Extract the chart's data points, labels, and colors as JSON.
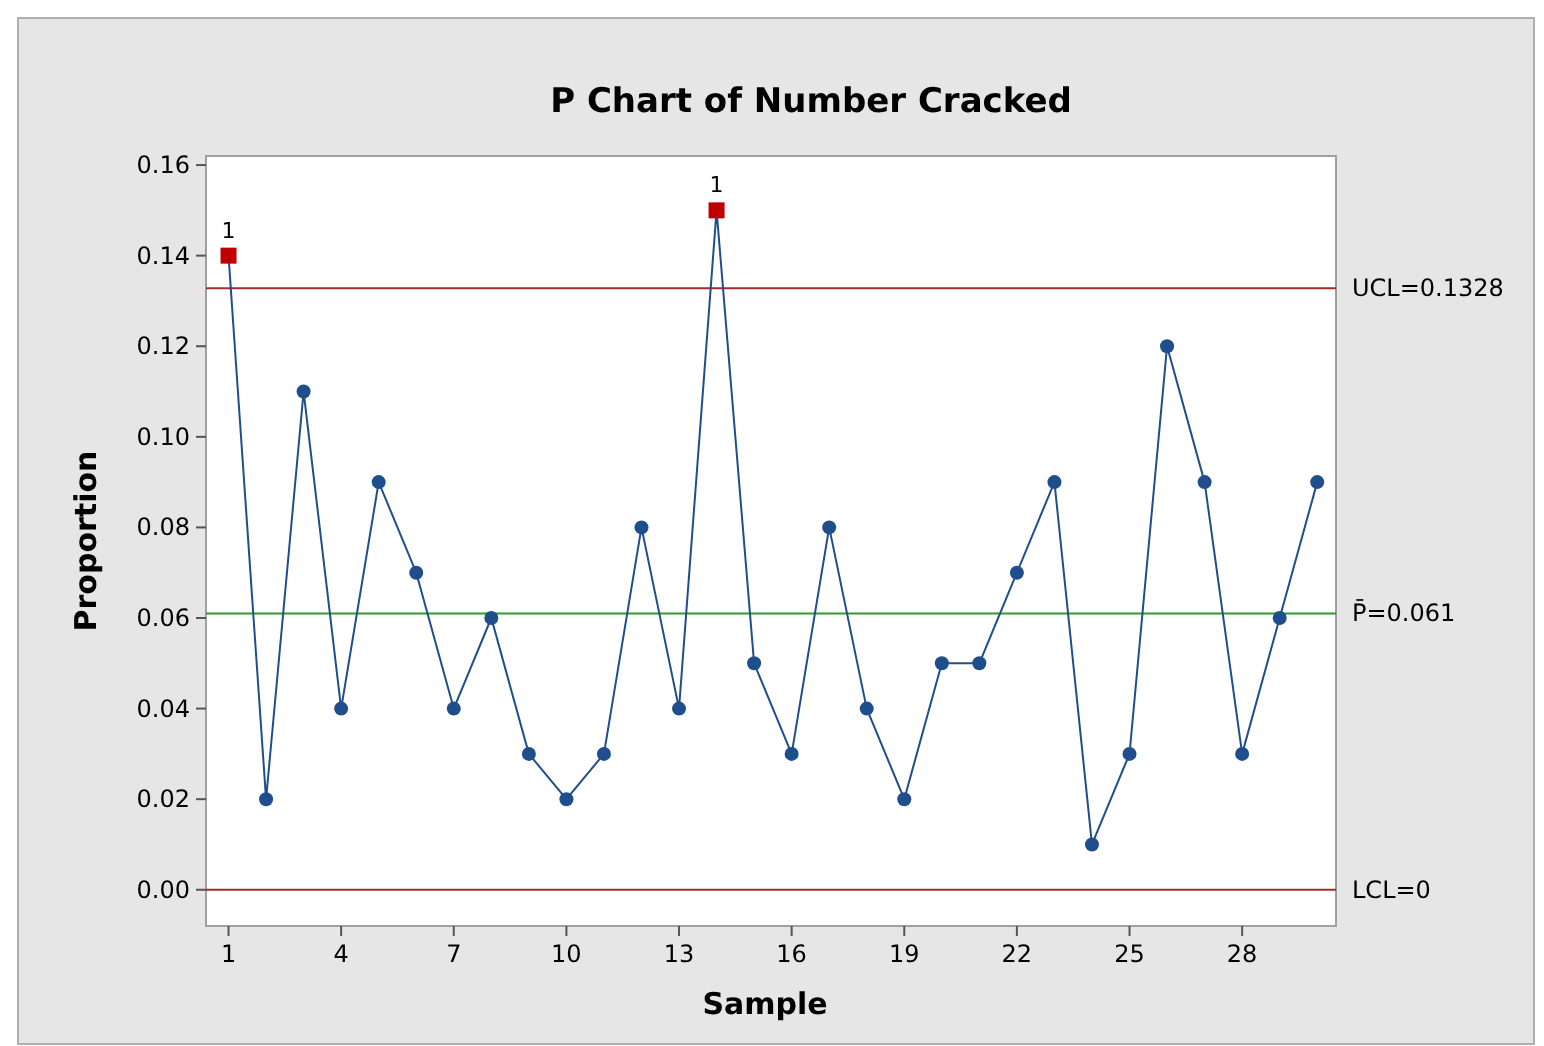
{
  "chart_data": {
    "type": "line",
    "title": "P Chart of Number Cracked",
    "xlabel": "Sample",
    "ylabel": "Proportion",
    "x": [
      1,
      2,
      3,
      4,
      5,
      6,
      7,
      8,
      9,
      10,
      11,
      12,
      13,
      14,
      15,
      16,
      17,
      18,
      19,
      20,
      21,
      22,
      23,
      24,
      25,
      26,
      27,
      28,
      29,
      30
    ],
    "series": [
      {
        "color": "#1f4e8c",
        "marker": "none",
        "values": [
          0.14,
          0.02,
          0.11,
          0.04,
          0.09,
          0.07,
          0.04,
          0.06,
          0.03,
          0.02,
          0.03,
          0.08,
          0.04,
          0.15,
          0.05,
          0.03,
          0.08,
          0.04,
          0.02,
          0.05,
          0.05,
          0.07,
          0.09,
          0.01,
          0.03,
          0.12,
          0.09,
          0.03,
          0.06,
          0.09
        ]
      },
      {
        "type": "scatter",
        "color": "#1f4e8c",
        "marker": "circle",
        "x": [
          2,
          3,
          4,
          5,
          6,
          7,
          8,
          9,
          10,
          11,
          12,
          13,
          15,
          16,
          17,
          18,
          19,
          20,
          21,
          22,
          23,
          24,
          25,
          26,
          27,
          28,
          29,
          30
        ],
        "values": [
          0.02,
          0.11,
          0.04,
          0.09,
          0.07,
          0.04,
          0.06,
          0.03,
          0.02,
          0.03,
          0.08,
          0.04,
          0.05,
          0.03,
          0.08,
          0.04,
          0.02,
          0.05,
          0.05,
          0.07,
          0.09,
          0.01,
          0.03,
          0.12,
          0.09,
          0.03,
          0.06,
          0.09
        ]
      },
      {
        "type": "scatter",
        "color": "#c00000",
        "marker": "square",
        "x": [
          1,
          14
        ],
        "values": [
          0.14,
          0.15
        ]
      }
    ],
    "xlim": [
      0.4,
      30.5
    ],
    "xticks": [
      1,
      4,
      7,
      10,
      13,
      16,
      19,
      22,
      25,
      28
    ],
    "ylim": [
      -0.008,
      0.162
    ],
    "yticks": [
      {
        "value": 0,
        "label": "0.00"
      },
      {
        "value": 0.02,
        "label": "0.02"
      },
      {
        "value": 0.04,
        "label": "0.04"
      },
      {
        "value": 0.06,
        "label": "0.06"
      },
      {
        "value": 0.08,
        "label": "0.08"
      },
      {
        "value": 0.1,
        "label": "0.10"
      },
      {
        "value": 0.12,
        "label": "0.12"
      },
      {
        "value": 0.14,
        "label": "0.14"
      },
      {
        "value": 0.16,
        "label": "0.16"
      }
    ],
    "ref_lines": [
      {
        "axis": "y",
        "value": 0.1328,
        "label": "UCL=0.1328",
        "color": "#a52a2a"
      },
      {
        "axis": "y",
        "value": 0.061,
        "label": "P̄=0.061",
        "color": "#2e9a2e"
      },
      {
        "axis": "y",
        "value": 0,
        "label": "LCL=0",
        "color": "#a52a2a"
      }
    ],
    "annotations": [
      {
        "text": "1",
        "x": 1,
        "y": 0.14
      },
      {
        "text": "1",
        "x": 14,
        "y": 0.15
      }
    ],
    "line_style": "solid",
    "grid": false
  }
}
